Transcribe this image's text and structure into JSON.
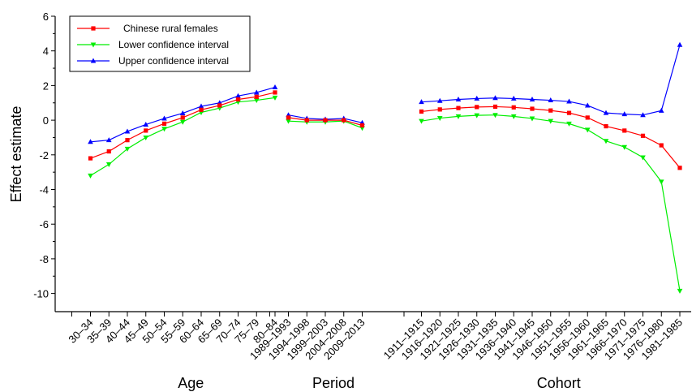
{
  "chart_data": {
    "type": "line",
    "ylabel": "Effect estimate",
    "ylim": [
      -11,
      6
    ],
    "yticks": [
      6,
      4,
      2,
      0,
      -2,
      -4,
      -6,
      -8,
      -10
    ],
    "grid": false,
    "legend_position": "top-left",
    "groups": [
      {
        "name": "Age",
        "categories": [
          "30–34",
          "35–39",
          "40–44",
          "45–49",
          "50–54",
          "55–59",
          "60–64",
          "65–69",
          "70–74",
          "75–79",
          "80–84"
        ]
      },
      {
        "name": "Period",
        "categories": [
          "1989–1993",
          "1994–1998",
          "1999–2003",
          "2004–2008",
          "2009–2013"
        ]
      },
      {
        "name": "Cohort",
        "categories": [
          "1911–1915",
          "1916–1920",
          "1921–1925",
          "1926–1930",
          "1931–1935",
          "1936–1940",
          "1941–1945",
          "1946–1950",
          "1951–1955",
          "1956–1960",
          "1961–1965",
          "1966–1970",
          "1971–1975",
          "1976–1980",
          "1981–1985"
        ]
      }
    ],
    "series": [
      {
        "name": "Chinese rural females",
        "color": "#ff0000",
        "marker": "square",
        "age": [
          -2.2,
          -1.8,
          -1.15,
          -0.6,
          -0.2,
          0.15,
          0.6,
          0.85,
          1.2,
          1.35,
          1.6
        ],
        "period": [
          0.15,
          0.0,
          0.0,
          0.0,
          -0.3
        ],
        "cohort": [
          0.5,
          0.62,
          0.7,
          0.76,
          0.78,
          0.74,
          0.66,
          0.56,
          0.42,
          0.15,
          -0.35,
          -0.6,
          -0.9,
          -1.45,
          -2.75
        ]
      },
      {
        "name": "Lower confidence interval",
        "color": "#00ee00",
        "marker": "triangle-down",
        "age": [
          -3.2,
          -2.55,
          -1.65,
          -1.0,
          -0.5,
          -0.1,
          0.45,
          0.7,
          1.05,
          1.15,
          1.3
        ],
        "period": [
          -0.05,
          -0.1,
          -0.1,
          -0.05,
          -0.45
        ],
        "cohort": [
          -0.05,
          0.12,
          0.22,
          0.28,
          0.3,
          0.22,
          0.1,
          -0.05,
          -0.2,
          -0.55,
          -1.2,
          -1.55,
          -2.15,
          -3.55,
          -9.85
        ]
      },
      {
        "name": "Upper confidence interval",
        "color": "#0000ff",
        "marker": "triangle-up",
        "age": [
          -1.25,
          -1.15,
          -0.65,
          -0.25,
          0.1,
          0.4,
          0.8,
          1.0,
          1.4,
          1.6,
          1.9
        ],
        "period": [
          0.3,
          0.1,
          0.05,
          0.1,
          -0.15
        ],
        "cohort": [
          1.05,
          1.12,
          1.2,
          1.25,
          1.28,
          1.25,
          1.2,
          1.15,
          1.08,
          0.85,
          0.42,
          0.35,
          0.3,
          0.55,
          4.35
        ]
      }
    ]
  }
}
